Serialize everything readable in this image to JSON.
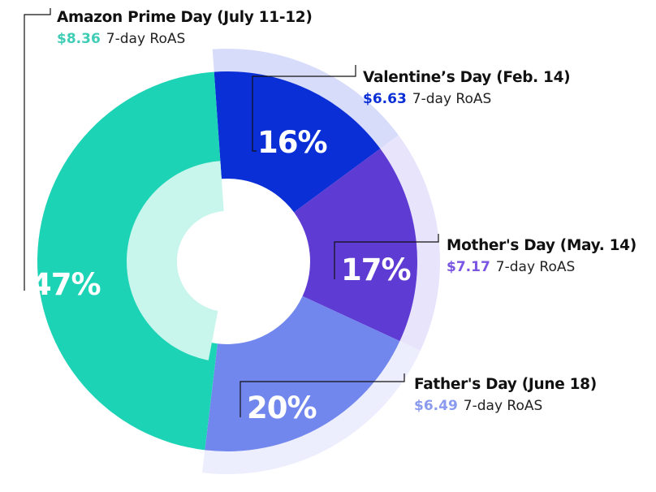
{
  "chart_data": {
    "type": "pie",
    "style": "donut",
    "unit_label": "7-day RoAS",
    "slices": [
      {
        "name": "Valentine’s Day (Feb. 14)",
        "percent": 16,
        "percent_label": "16%",
        "roas": 6.63,
        "roas_label": "$6.63",
        "color": "#0a2fd6",
        "text_color": "#0a2fd6",
        "halo_color": "#d8dcfb",
        "halo": true
      },
      {
        "name": "Mother's Day (May. 14)",
        "percent": 17,
        "percent_label": "17%",
        "roas": 7.17,
        "roas_label": "$7.17",
        "color": "#5e3bd2",
        "text_color": "#7a55e3",
        "halo_color": "#e8e4fb",
        "halo": true
      },
      {
        "name": "Father's Day (June 18)",
        "percent": 20,
        "percent_label": "20%",
        "roas": 6.49,
        "roas_label": "$6.49",
        "color": "#7287ee",
        "text_color": "#8a9aee",
        "halo_color": "#eceefd",
        "halo": true
      },
      {
        "name": "Amazon Prime Day (July 11-12)",
        "percent": 47,
        "percent_label": "47%",
        "roas": 8.36,
        "roas_label": "$8.36",
        "color": "#1dd3b5",
        "text_color": "#3fcdb6",
        "inner_band_color": "#c8f6ec",
        "halo": false
      }
    ]
  }
}
